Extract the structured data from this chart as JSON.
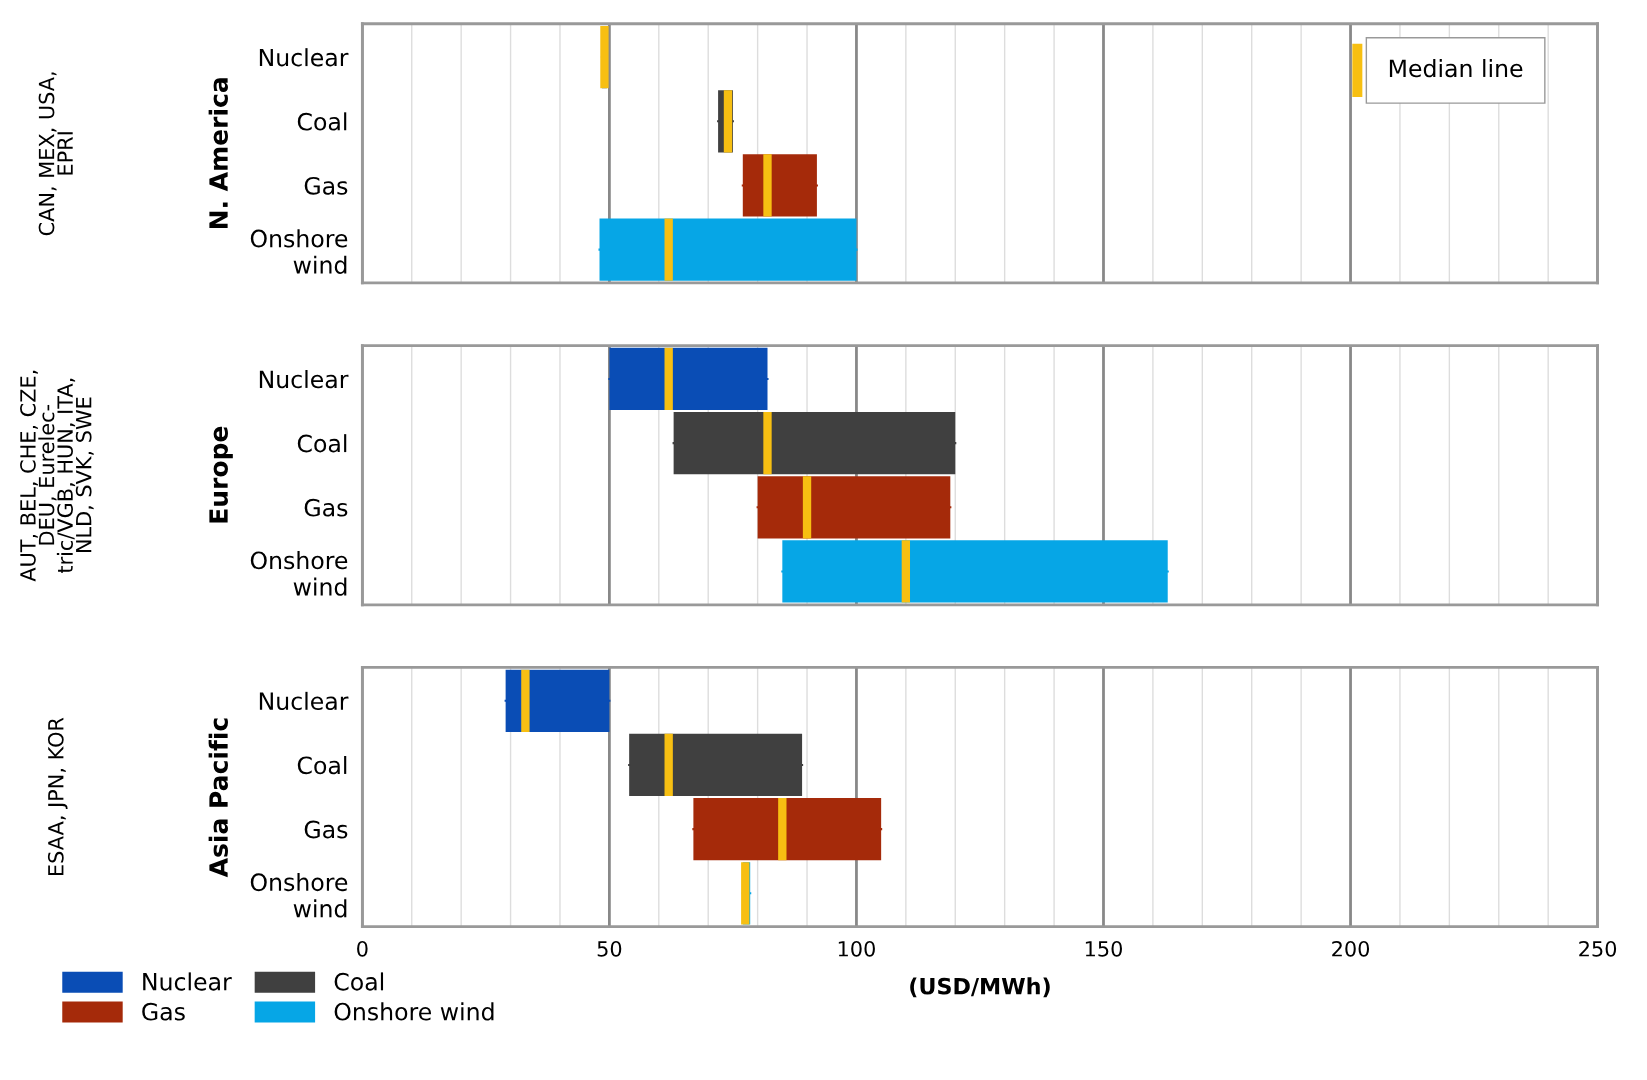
{
  "chart_data": [
    {
      "type": "box",
      "orientation": "horizontal",
      "ylabel": "N. America",
      "annotations": [
        "CAN, MEX, USA,\nEPRI",
        "Median line"
      ],
      "categories": [
        "Nuclear",
        "Coal",
        "Gas",
        "Onshore\nwind"
      ],
      "xlim": [
        0,
        250
      ],
      "xticks": [
        0,
        {
          "value": 10,
          "label": null
        },
        {
          "value": 20,
          "label": null
        },
        {
          "value": 30,
          "label": null
        },
        {
          "value": 40,
          "label": null
        },
        50,
        {
          "value": 60,
          "label": null
        },
        {
          "value": 70,
          "label": null
        },
        {
          "value": 80,
          "label": null
        },
        {
          "value": 90,
          "label": null
        },
        100,
        {
          "value": 110,
          "label": null
        },
        {
          "value": 120,
          "label": null
        },
        {
          "value": 130,
          "label": null
        },
        {
          "value": 140,
          "label": null
        },
        150,
        {
          "value": 160,
          "label": null
        },
        {
          "value": 170,
          "label": null
        },
        {
          "value": 180,
          "label": null
        },
        {
          "value": 190,
          "label": null
        },
        200,
        {
          "value": 210,
          "label": null
        },
        {
          "value": 220,
          "label": null
        },
        {
          "value": 230,
          "label": null
        },
        {
          "value": 240,
          "label": null
        },
        250
      ],
      "tick_labels": "y",
      "grid": "x",
      "series": [
        {
          "color": "#0a4db5",
          "boxes": [
            {
              "low": 48.5,
              "q1": 48.5,
              "median": 49,
              "q3": 49.5,
              "high": 49.5
            },
            null,
            null,
            null
          ]
        },
        {
          "color": "#404040",
          "boxes": [
            null,
            {
              "low": 72,
              "q1": 72,
              "median": 74,
              "q3": 75,
              "high": 75
            },
            null,
            null
          ]
        },
        {
          "color": "#a52a0a",
          "boxes": [
            null,
            null,
            {
              "low": 77,
              "q1": 77,
              "median": 82,
              "q3": 92,
              "high": 92
            },
            null
          ]
        },
        {
          "color": "#06a6e6",
          "boxes": [
            null,
            null,
            null,
            {
              "low": 48,
              "q1": 48,
              "median": 62,
              "q3": 100,
              "high": 100
            }
          ]
        }
      ]
    },
    {
      "type": "box",
      "orientation": "horizontal",
      "ylabel": "Europe",
      "annotations": [
        "AUT, BEL, CHE, CZE,\nDEU, Eurelec-\ntric/VGB, HUN, ITA,\nNLD, SVK, SWE"
      ],
      "categories": [
        "Nuclear",
        "Coal",
        "Gas",
        "Onshore\nwind"
      ],
      "xlim": [
        0,
        250
      ],
      "xticks": [
        0,
        {
          "value": 10,
          "label": null
        },
        {
          "value": 20,
          "label": null
        },
        {
          "value": 30,
          "label": null
        },
        {
          "value": 40,
          "label": null
        },
        50,
        {
          "value": 60,
          "label": null
        },
        {
          "value": 70,
          "label": null
        },
        {
          "value": 80,
          "label": null
        },
        {
          "value": 90,
          "label": null
        },
        100,
        {
          "value": 110,
          "label": null
        },
        {
          "value": 120,
          "label": null
        },
        {
          "value": 130,
          "label": null
        },
        {
          "value": 140,
          "label": null
        },
        150,
        {
          "value": 160,
          "label": null
        },
        {
          "value": 170,
          "label": null
        },
        {
          "value": 180,
          "label": null
        },
        {
          "value": 190,
          "label": null
        },
        200,
        {
          "value": 210,
          "label": null
        },
        {
          "value": 220,
          "label": null
        },
        {
          "value": 230,
          "label": null
        },
        {
          "value": 240,
          "label": null
        },
        250
      ],
      "tick_labels": "y",
      "grid": "x",
      "series": [
        {
          "color": "#0a4db5",
          "boxes": [
            {
              "low": 50,
              "q1": 50,
              "median": 62,
              "q3": 82,
              "high": 82
            },
            null,
            null,
            null
          ]
        },
        {
          "color": "#404040",
          "boxes": [
            null,
            {
              "low": 63,
              "q1": 63,
              "median": 82,
              "q3": 120,
              "high": 120
            },
            null,
            null
          ]
        },
        {
          "color": "#a52a0a",
          "boxes": [
            null,
            null,
            {
              "low": 80,
              "q1": 80,
              "median": 90,
              "q3": 119,
              "high": 119
            },
            null
          ]
        },
        {
          "color": "#06a6e6",
          "boxes": [
            null,
            null,
            null,
            {
              "low": 85,
              "q1": 85,
              "median": 110,
              "q3": 163,
              "high": 163
            }
          ]
        }
      ]
    },
    {
      "type": "box",
      "orientation": "horizontal",
      "ylabel": "Asia Pacific",
      "xlabel": "(USD/MWh)",
      "annotations": [
        "ESAA, JPN, KOR"
      ],
      "categories": [
        "Nuclear",
        "Coal",
        "Gas",
        "Onshore\nwind"
      ],
      "xlim": [
        0,
        250
      ],
      "xticks": [
        0,
        {
          "value": 10,
          "label": null
        },
        {
          "value": 20,
          "label": null
        },
        {
          "value": 30,
          "label": null
        },
        {
          "value": 40,
          "label": null
        },
        50,
        {
          "value": 60,
          "label": null
        },
        {
          "value": 70,
          "label": null
        },
        {
          "value": 80,
          "label": null
        },
        {
          "value": 90,
          "label": null
        },
        100,
        {
          "value": 110,
          "label": null
        },
        {
          "value": 120,
          "label": null
        },
        {
          "value": 130,
          "label": null
        },
        {
          "value": 140,
          "label": null
        },
        150,
        {
          "value": 160,
          "label": null
        },
        {
          "value": 170,
          "label": null
        },
        {
          "value": 180,
          "label": null
        },
        {
          "value": 190,
          "label": null
        },
        200,
        {
          "value": 210,
          "label": null
        },
        {
          "value": 220,
          "label": null
        },
        {
          "value": 230,
          "label": null
        },
        {
          "value": 240,
          "label": null
        },
        250
      ],
      "grid": "x",
      "legend": "bottom",
      "series": [
        {
          "name": "Nuclear",
          "color": "#0a4db5",
          "boxes": [
            {
              "low": 29,
              "q1": 29,
              "median": 33,
              "q3": 50,
              "high": 50
            },
            null,
            null,
            null
          ]
        },
        {
          "name": "Coal",
          "color": "#404040",
          "boxes": [
            null,
            {
              "low": 54,
              "q1": 54,
              "median": 62,
              "q3": 89,
              "high": 89
            },
            null,
            null
          ]
        },
        {
          "name": "Gas",
          "color": "#a52a0a",
          "boxes": [
            null,
            null,
            {
              "low": 67,
              "q1": 67,
              "median": 85,
              "q3": 105,
              "high": 105
            },
            null
          ]
        },
        {
          "name": "Onshore wind",
          "color": "#06a6e6",
          "boxes": [
            null,
            null,
            null,
            {
              "low": 77,
              "q1": 77,
              "median": 77.5,
              "q3": 78.5,
              "high": 78.5
            }
          ]
        }
      ]
    }
  ]
}
